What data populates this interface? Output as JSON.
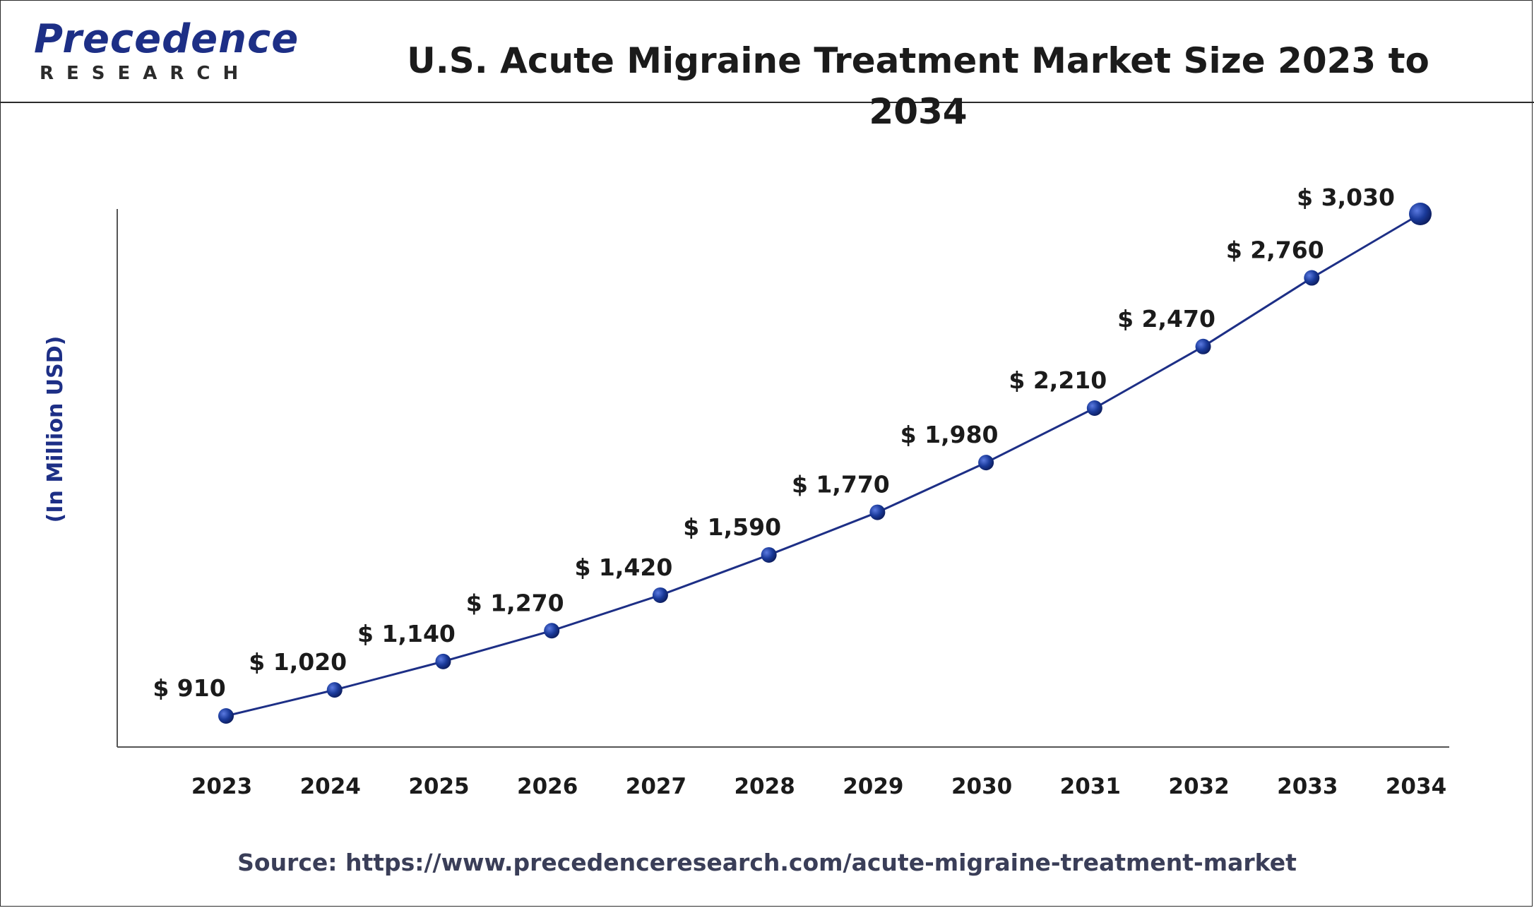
{
  "brand": {
    "logo_word": "Precedence",
    "logo_sub": "RESEARCH"
  },
  "title": "U.S. Acute Migraine Treatment Market Size 2023 to 2034",
  "source": "Source: https://www.precedenceresearch.com/acute-migraine-treatment-market",
  "colors": {
    "line": "#1d2f86",
    "marker": "#1a3a9a",
    "ylabel": "#1d2f86",
    "text": "#1b1b1b",
    "axis": "#555555"
  },
  "chart_data": {
    "type": "line",
    "title": "U.S. Acute Migraine Treatment Market Size 2023 to 2034",
    "xlabel": "",
    "ylabel": "(In Million USD)",
    "categories": [
      "2023",
      "2024",
      "2025",
      "2026",
      "2027",
      "2028",
      "2029",
      "2030",
      "2031",
      "2032",
      "2033",
      "2034"
    ],
    "series": [
      {
        "values": [
          910,
          1020,
          1140,
          1270,
          1420,
          1590,
          1770,
          1980,
          2210,
          2470,
          2760,
          3030
        ],
        "labels": [
          "$ 910",
          "$ 1,020",
          "$ 1,140",
          "$ 1,270",
          "$ 1,420",
          "$ 1,590",
          "$ 1,770",
          "$ 1,980",
          "$ 2,210",
          "$ 2,470",
          "$ 2,760",
          "$ 3,030"
        ]
      }
    ],
    "ylim": [
      0,
      3200
    ],
    "grid": false,
    "legend": "none"
  }
}
